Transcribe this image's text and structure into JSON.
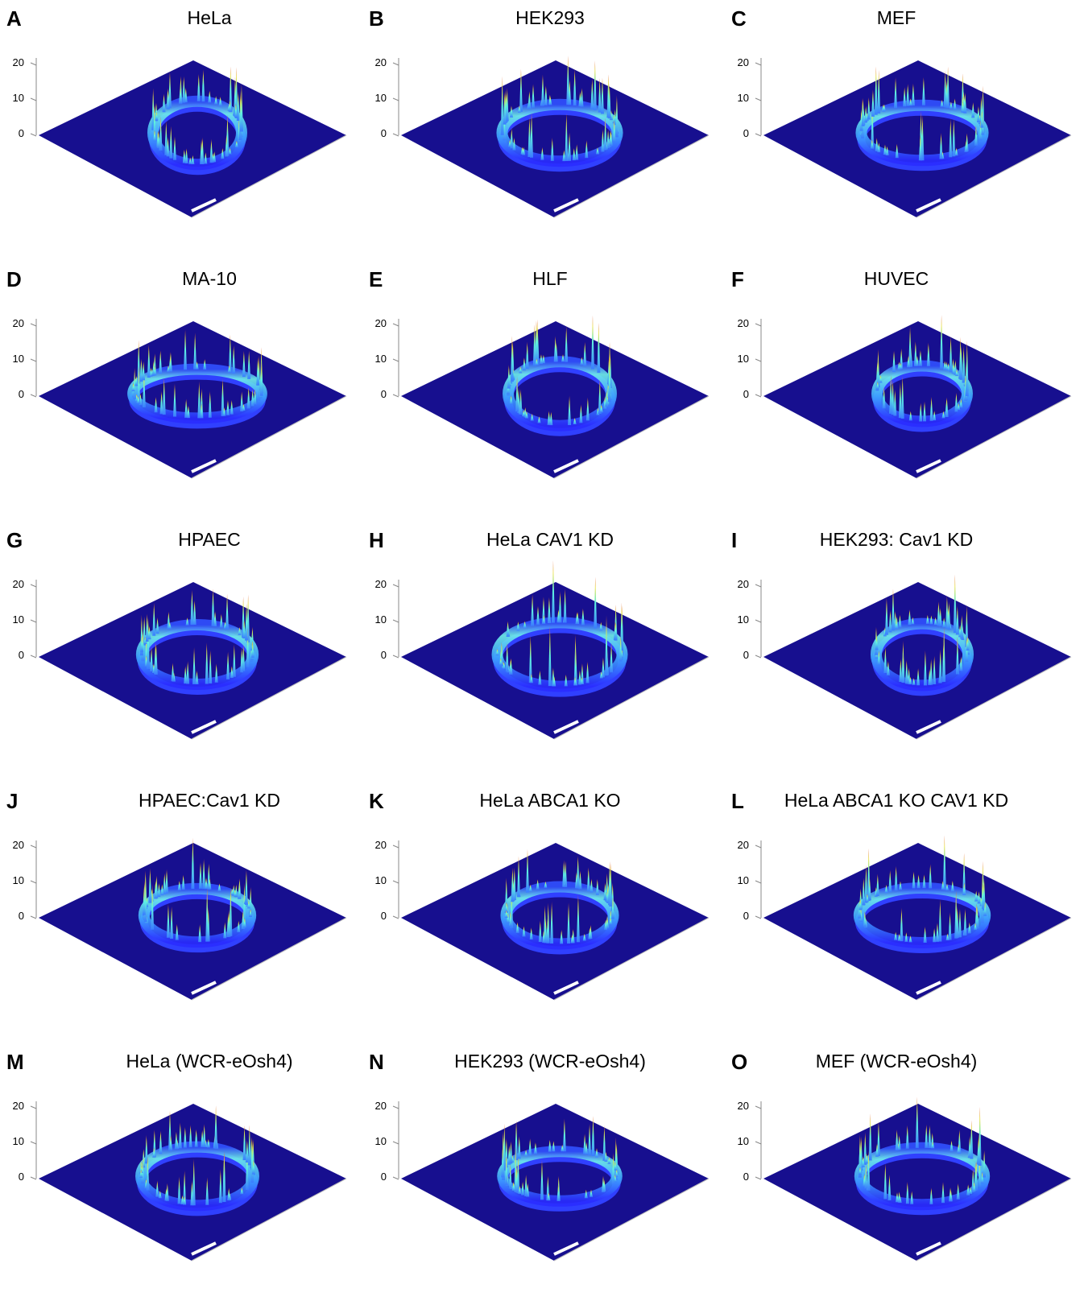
{
  "panels": [
    {
      "letter": "A",
      "title": "HeLa",
      "zticks": [
        0,
        10,
        20
      ]
    },
    {
      "letter": "B",
      "title": "HEK293",
      "zticks": [
        0,
        10,
        20
      ]
    },
    {
      "letter": "C",
      "title": "MEF",
      "zticks": [
        0,
        10,
        20
      ]
    },
    {
      "letter": "D",
      "title": "MA-10",
      "zticks": [
        0,
        10,
        20
      ]
    },
    {
      "letter": "E",
      "title": "HLF",
      "zticks": [
        0,
        10,
        20
      ]
    },
    {
      "letter": "F",
      "title": "HUVEC",
      "zticks": [
        0,
        10,
        20
      ]
    },
    {
      "letter": "G",
      "title": "HPAEC",
      "zticks": [
        0,
        10,
        20
      ]
    },
    {
      "letter": "H",
      "title": "HeLa CAV1 KD",
      "zticks": [
        0,
        10,
        20
      ]
    },
    {
      "letter": "I",
      "title": "HEK293: Cav1 KD",
      "zticks": [
        0,
        10,
        20
      ]
    },
    {
      "letter": "J",
      "title": "HPAEC:Cav1 KD",
      "zticks": [
        0,
        10,
        20
      ]
    },
    {
      "letter": "K",
      "title": "HeLa ABCA1 KO",
      "zticks": [
        0,
        10,
        20
      ]
    },
    {
      "letter": "L",
      "title": "HeLa ABCA1 KO CAV1 KD",
      "zticks": [
        0,
        10,
        20
      ]
    },
    {
      "letter": "M",
      "title": "HeLa (WCR-eOsh4)",
      "zticks": [
        0,
        10,
        20
      ]
    },
    {
      "letter": "N",
      "title": "HEK293 (WCR-eOsh4)",
      "zticks": [
        0,
        10,
        20
      ]
    },
    {
      "letter": "O",
      "title": "MEF (WCR-eOsh4)",
      "zticks": [
        0,
        10,
        20
      ]
    }
  ]
}
